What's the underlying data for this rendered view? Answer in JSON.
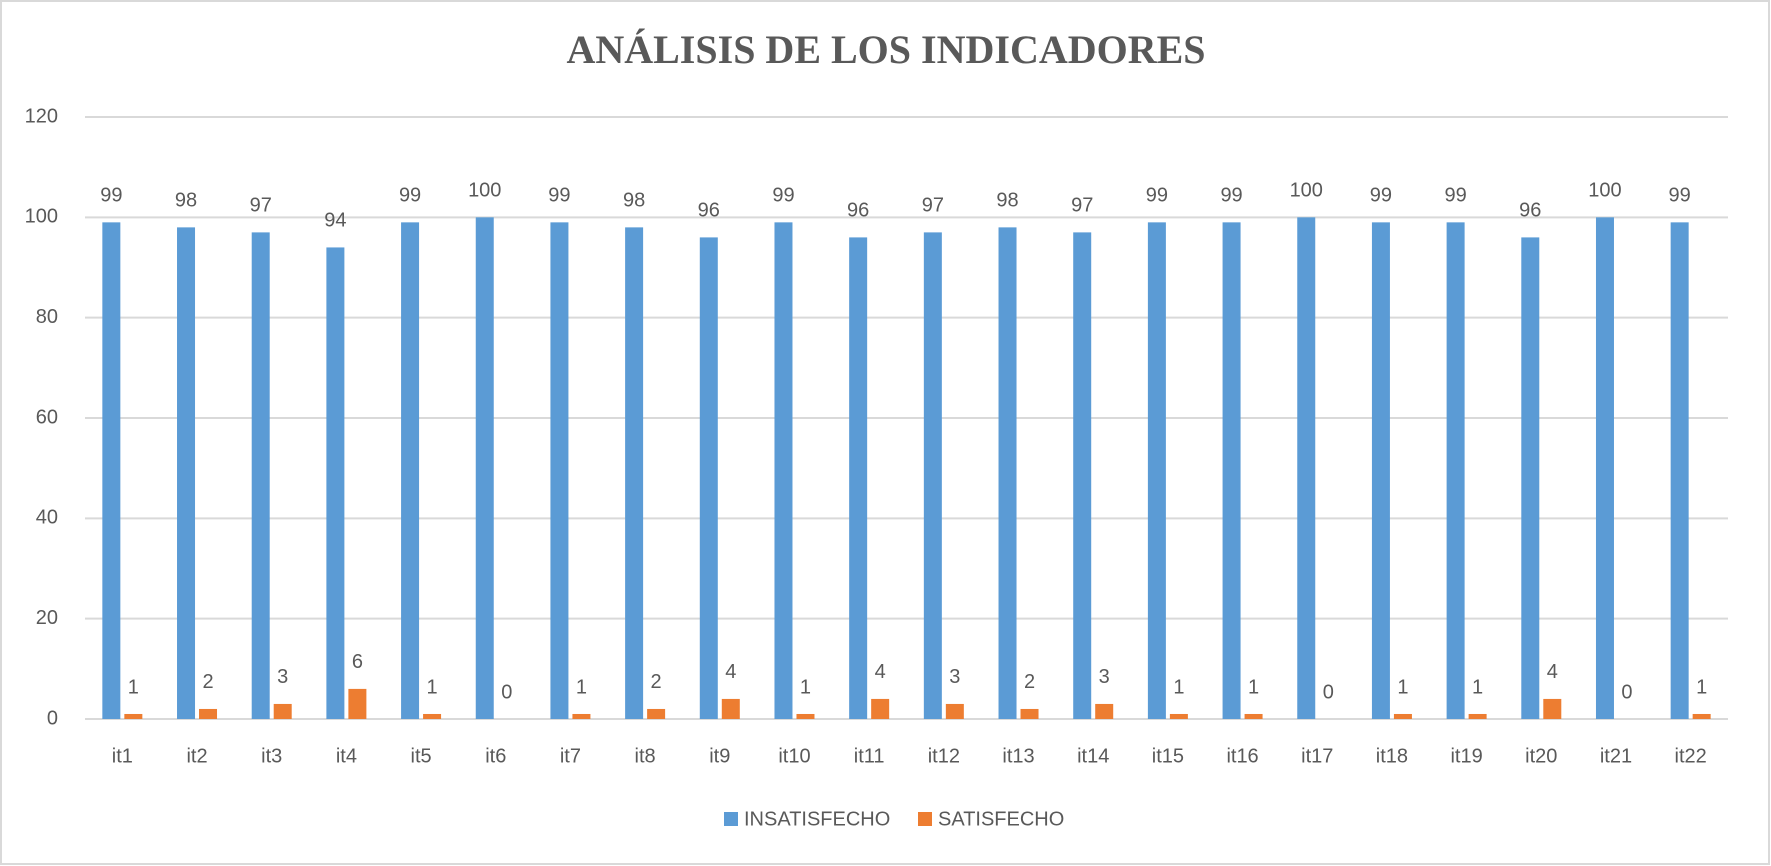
{
  "chart_data": {
    "type": "bar",
    "title": "ANÁLISIS  DE LOS INDICADORES",
    "categories": [
      "it1",
      "it2",
      "it3",
      "it4",
      "it5",
      "it6",
      "it7",
      "it8",
      "it9",
      "it10",
      "it11",
      "it12",
      "it13",
      "it14",
      "it15",
      "it16",
      "it17",
      "it18",
      "it19",
      "it20",
      "it21",
      "it22"
    ],
    "series": [
      {
        "name": "INSATISFECHO",
        "color": "#5b9bd5",
        "values": [
          99,
          98,
          97,
          94,
          99,
          100,
          99,
          98,
          96,
          99,
          96,
          97,
          98,
          97,
          99,
          99,
          100,
          99,
          99,
          96,
          100,
          99
        ]
      },
      {
        "name": "SATISFECHO",
        "color": "#ed7d31",
        "values": [
          1,
          2,
          3,
          6,
          1,
          0,
          1,
          2,
          4,
          1,
          4,
          3,
          2,
          3,
          1,
          1,
          0,
          1,
          1,
          4,
          0,
          1
        ]
      }
    ],
    "ylim": [
      0,
      120
    ],
    "yticks": [
      0,
      20,
      40,
      60,
      80,
      100,
      120
    ],
    "grid": true,
    "legend": "bottom"
  }
}
